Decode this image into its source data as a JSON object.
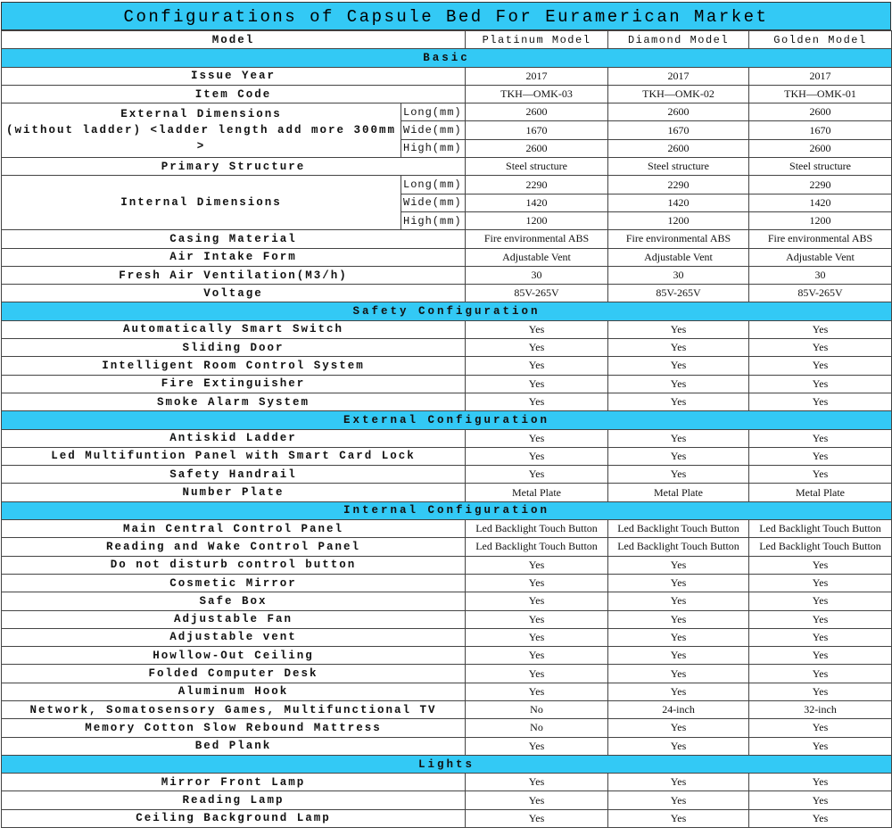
{
  "title": "Configurations of Capsule Bed For Euramerican Market",
  "header": {
    "label": "Model",
    "models": [
      "Platinum Model",
      "Diamond Model",
      "Golden Model"
    ]
  },
  "sections": [
    {
      "name": "Basic",
      "rows": [
        {
          "label": "Issue Year",
          "values": [
            "2017",
            "2017",
            "2017"
          ]
        },
        {
          "label": "Item Code",
          "values": [
            "TKH—OMK-03",
            "TKH—OMK-02",
            "TKH—OMK-01"
          ]
        },
        {
          "label_lines": [
            "External Dimensions",
            "(without ladder) <ladder length add more 300mm >"
          ],
          "sub": [
            {
              "label": "Long(mm)",
              "values": [
                "2600",
                "2600",
                "2600"
              ]
            },
            {
              "label": "Wide(mm)",
              "values": [
                "1670",
                "1670",
                "1670"
              ]
            },
            {
              "label": "High(mm)",
              "values": [
                "2600",
                "2600",
                "2600"
              ]
            }
          ]
        },
        {
          "label": "Primary Structure",
          "values": [
            "Steel structure",
            "Steel structure",
            "Steel structure"
          ]
        },
        {
          "label_lines": [
            "Internal Dimensions"
          ],
          "sub": [
            {
              "label": "Long(mm)",
              "values": [
                "2290",
                "2290",
                "2290"
              ]
            },
            {
              "label": "Wide(mm)",
              "values": [
                "1420",
                "1420",
                "1420"
              ]
            },
            {
              "label": "High(mm)",
              "values": [
                "1200",
                "1200",
                "1200"
              ]
            }
          ]
        },
        {
          "label": "Casing Material",
          "values": [
            "Fire environmental ABS",
            "Fire environmental ABS",
            "Fire environmental ABS"
          ]
        },
        {
          "label": "Air Intake Form",
          "values": [
            "Adjustable Vent",
            "Adjustable Vent",
            "Adjustable Vent"
          ]
        },
        {
          "label": "Fresh Air Ventilation(M3/h)",
          "values": [
            "30",
            "30",
            "30"
          ]
        },
        {
          "label": "Voltage",
          "values": [
            "85V-265V",
            "85V-265V",
            "85V-265V"
          ]
        }
      ]
    },
    {
      "name": "Safety Configuration",
      "rows": [
        {
          "label": "Automatically Smart Switch",
          "values": [
            "Yes",
            "Yes",
            "Yes"
          ]
        },
        {
          "label": "Sliding Door",
          "values": [
            "Yes",
            "Yes",
            "Yes"
          ]
        },
        {
          "label": "Intelligent Room Control System",
          "values": [
            "Yes",
            "Yes",
            "Yes"
          ]
        },
        {
          "label": "Fire Extinguisher",
          "values": [
            "Yes",
            "Yes",
            "Yes"
          ]
        },
        {
          "label": "Smoke Alarm System",
          "values": [
            "Yes",
            "Yes",
            "Yes"
          ]
        }
      ]
    },
    {
      "name": "External Configuration",
      "rows": [
        {
          "label": "Antiskid Ladder",
          "values": [
            "Yes",
            "Yes",
            "Yes"
          ]
        },
        {
          "label": "Led Multifuntion Panel with Smart Card Lock",
          "values": [
            "Yes",
            "Yes",
            "Yes"
          ]
        },
        {
          "label": "Safety Handrail",
          "values": [
            "Yes",
            "Yes",
            "Yes"
          ]
        },
        {
          "label": "Number Plate",
          "values": [
            "Metal Plate",
            "Metal Plate",
            "Metal Plate"
          ]
        }
      ]
    },
    {
      "name": "Internal Configuration",
      "rows": [
        {
          "label": "Main Central Control Panel",
          "values": [
            "Led Backlight Touch Button",
            "Led Backlight Touch Button",
            "Led Backlight Touch Button"
          ]
        },
        {
          "label": "Reading and Wake Control Panel",
          "values": [
            "Led Backlight Touch Button",
            "Led Backlight Touch Button",
            "Led Backlight Touch Button"
          ]
        },
        {
          "label": "Do not disturb control button",
          "values": [
            "Yes",
            "Yes",
            "Yes"
          ]
        },
        {
          "label": "Cosmetic Mirror",
          "values": [
            "Yes",
            "Yes",
            "Yes"
          ]
        },
        {
          "label": "Safe Box",
          "values": [
            "Yes",
            "Yes",
            "Yes"
          ]
        },
        {
          "label": "Adjustable Fan",
          "values": [
            "Yes",
            "Yes",
            "Yes"
          ]
        },
        {
          "label": "Adjustable vent",
          "values": [
            "Yes",
            "Yes",
            "Yes"
          ]
        },
        {
          "label": "Howllow-Out Ceiling",
          "values": [
            "Yes",
            "Yes",
            "Yes"
          ]
        },
        {
          "label": "Folded Computer Desk",
          "values": [
            "Yes",
            "Yes",
            "Yes"
          ]
        },
        {
          "label": "Aluminum Hook",
          "values": [
            "Yes",
            "Yes",
            "Yes"
          ]
        },
        {
          "label": "Network, Somatosensory Games, Multifunctional TV",
          "values": [
            "No",
            "24-inch",
            "32-inch"
          ]
        },
        {
          "label": "Memory Cotton Slow Rebound Mattress",
          "values": [
            "No",
            "Yes",
            "Yes"
          ]
        },
        {
          "label": "Bed Plank",
          "values": [
            "Yes",
            "Yes",
            "Yes"
          ]
        }
      ]
    },
    {
      "name": "Lights",
      "rows": [
        {
          "label": "Mirror Front Lamp",
          "values": [
            "Yes",
            "Yes",
            "Yes"
          ]
        },
        {
          "label": "Reading Lamp",
          "values": [
            "Yes",
            "Yes",
            "Yes"
          ]
        },
        {
          "label": "Ceiling Background Lamp",
          "values": [
            "Yes",
            "Yes",
            "Yes"
          ]
        }
      ]
    }
  ]
}
